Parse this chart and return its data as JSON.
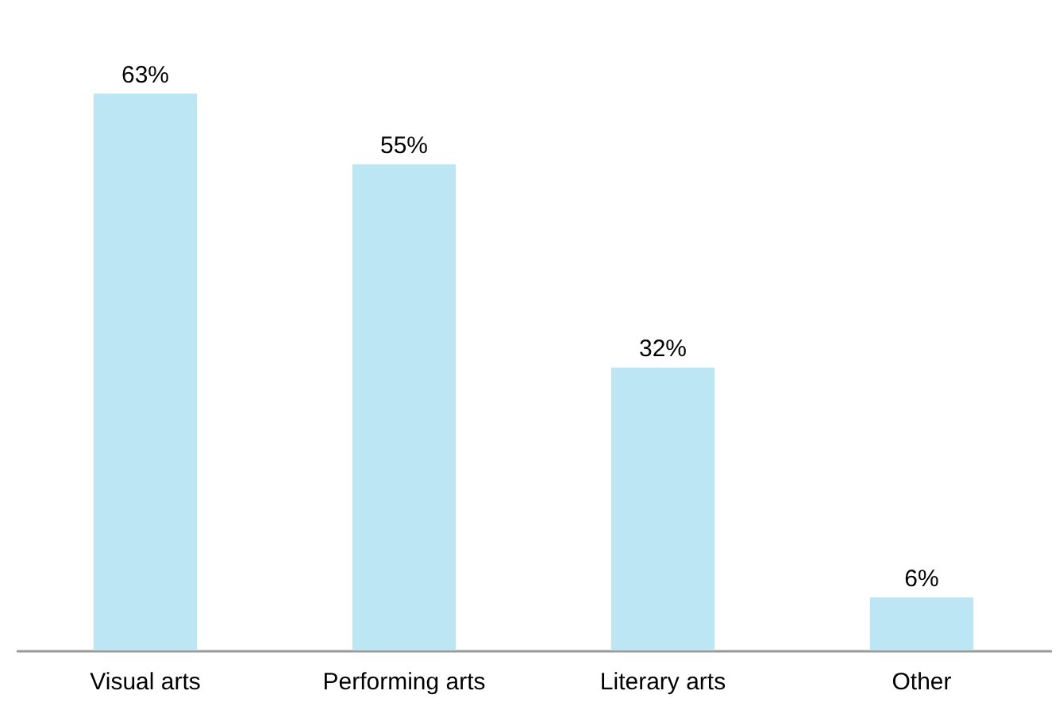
{
  "chart_data": {
    "type": "bar",
    "categories": [
      "Visual arts",
      "Performing arts",
      "Literary arts",
      "Other"
    ],
    "values": [
      63,
      55,
      32,
      6
    ],
    "value_labels": [
      "63%",
      "55%",
      "32%",
      "6%"
    ],
    "color": "#bde6f4",
    "grid": false
  }
}
